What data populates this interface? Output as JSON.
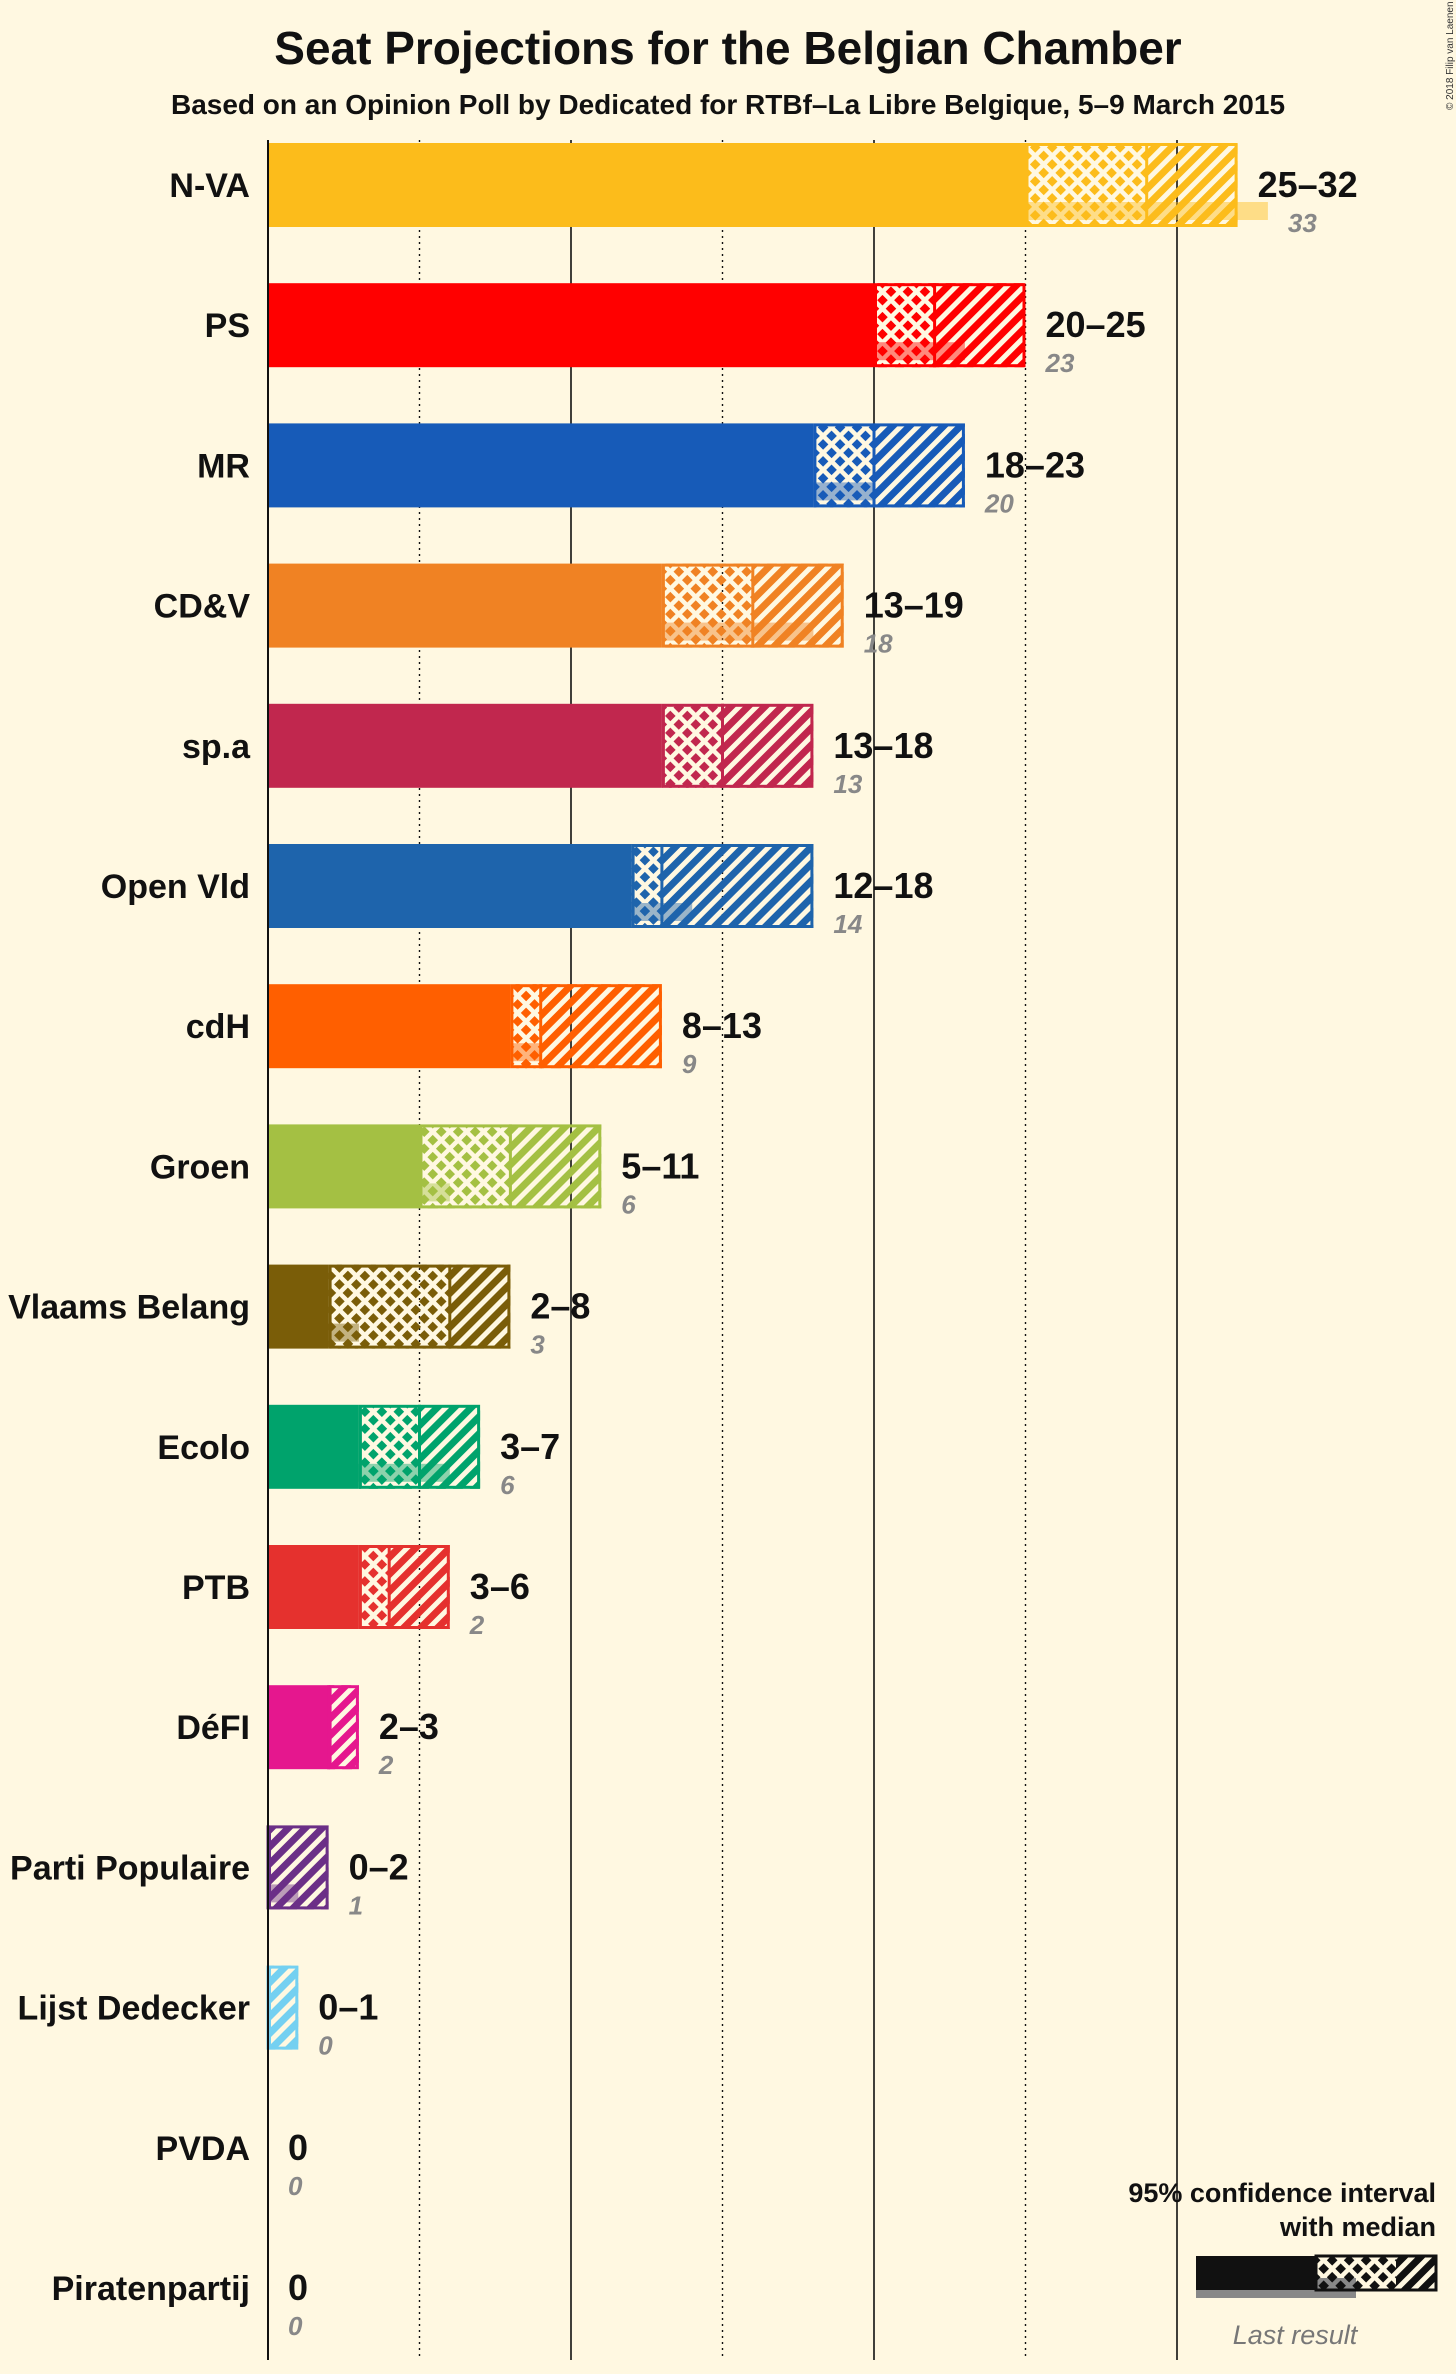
{
  "chart_data": {
    "type": "bar",
    "title": "Seat Projections for the Belgian Chamber",
    "subtitle": "Based on an Opinion Poll by Dedicated for RTBf–La Libre Belgique, 5–9 March 2015",
    "copyright": "© 2018 Filip van Laenen",
    "xlim": [
      0,
      35
    ],
    "gridlines": [
      5,
      10,
      15,
      20,
      25,
      30
    ],
    "parties": [
      {
        "name": "N-VA",
        "color": "#fcbc1b",
        "low": 25,
        "median": 29,
        "high": 32,
        "last": 33,
        "label": "25–32",
        "last_label": "33"
      },
      {
        "name": "PS",
        "color": "#ff0000",
        "low": 20,
        "median": 22,
        "high": 25,
        "last": 23,
        "label": "20–25",
        "last_label": "23"
      },
      {
        "name": "MR",
        "color": "#175bb8",
        "low": 18,
        "median": 20,
        "high": 23,
        "last": 20,
        "label": "18–23",
        "last_label": "20"
      },
      {
        "name": "CD&V",
        "color": "#f08223",
        "low": 13,
        "median": 16,
        "high": 19,
        "last": 18,
        "label": "13–19",
        "last_label": "18"
      },
      {
        "name": "sp.a",
        "color": "#c1274e",
        "low": 13,
        "median": 15,
        "high": 18,
        "last": 13,
        "label": "13–18",
        "last_label": "13"
      },
      {
        "name": "Open Vld",
        "color": "#1e64ac",
        "low": 12,
        "median": 13,
        "high": 18,
        "last": 14,
        "label": "12–18",
        "last_label": "14"
      },
      {
        "name": "cdH",
        "color": "#ff5f00",
        "low": 8,
        "median": 9,
        "high": 13,
        "last": 9,
        "label": "8–13",
        "last_label": "9"
      },
      {
        "name": "Groen",
        "color": "#a4c043",
        "low": 5,
        "median": 8,
        "high": 11,
        "last": 6,
        "label": "5–11",
        "last_label": "6"
      },
      {
        "name": "Vlaams Belang",
        "color": "#7a5d08",
        "low": 2,
        "median": 6,
        "high": 8,
        "last": 3,
        "label": "2–8",
        "last_label": "3"
      },
      {
        "name": "Ecolo",
        "color": "#00a36c",
        "low": 3,
        "median": 5,
        "high": 7,
        "last": 6,
        "label": "3–7",
        "last_label": "6"
      },
      {
        "name": "PTB",
        "color": "#e5312e",
        "low": 3,
        "median": 4,
        "high": 6,
        "last": 2,
        "label": "3–6",
        "last_label": "2"
      },
      {
        "name": "DéFI",
        "color": "#e5178e",
        "low": 2,
        "median": 2,
        "high": 3,
        "last": 2,
        "label": "2–3",
        "last_label": "2"
      },
      {
        "name": "Parti Populaire",
        "color": "#6b2f87",
        "low": 0,
        "median": 0,
        "high": 2,
        "last": 1,
        "label": "0–2",
        "last_label": "1"
      },
      {
        "name": "Lijst Dedecker",
        "color": "#74d0f1",
        "low": 0,
        "median": 0,
        "high": 1,
        "last": 0,
        "label": "0–1",
        "last_label": "0"
      },
      {
        "name": "PVDA",
        "color": "#e5312e",
        "low": 0,
        "median": 0,
        "high": 0,
        "last": 0,
        "label": "0",
        "last_label": "0"
      },
      {
        "name": "Piratenpartij",
        "color": "#111111",
        "low": 0,
        "median": 0,
        "high": 0,
        "last": 0,
        "label": "0",
        "last_label": "0"
      }
    ]
  },
  "legend": {
    "line1": "95% confidence interval",
    "line2": "with median",
    "last_result": "Last result"
  }
}
